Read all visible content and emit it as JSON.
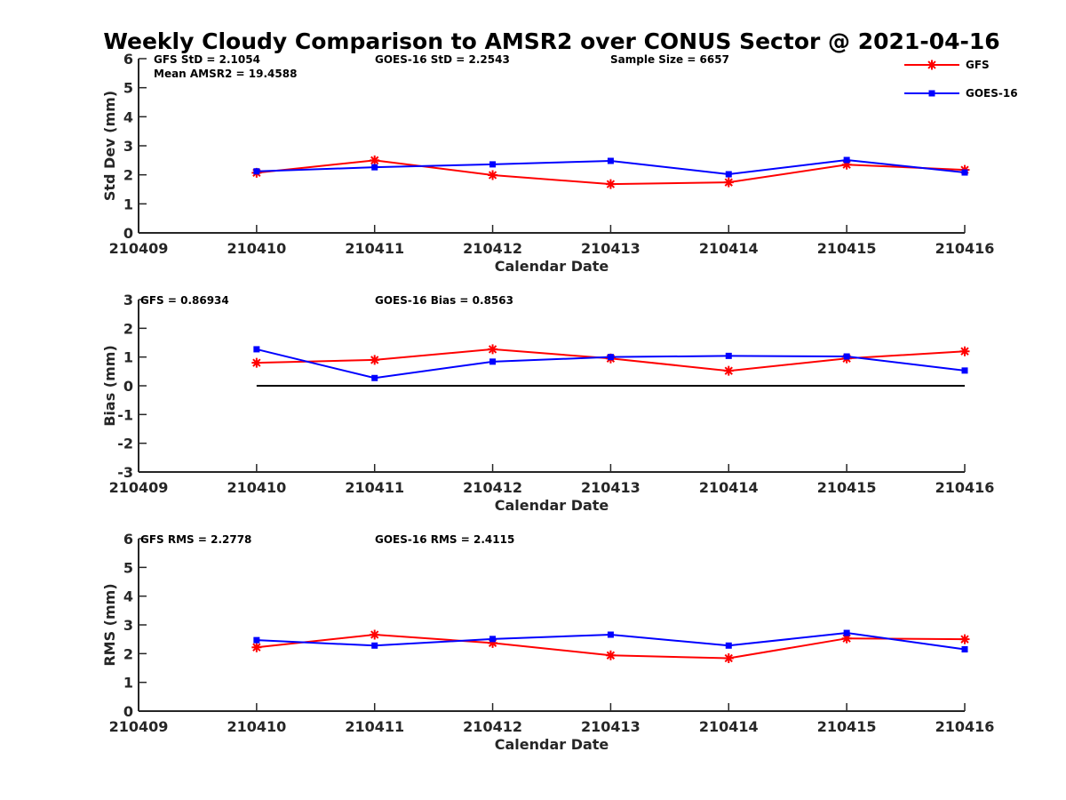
{
  "title": "Weekly Cloudy Comparison to AMSR2 over CONUS Sector @ 2021-04-16",
  "legend": {
    "placement": "top-right",
    "items": [
      {
        "label": "GFS",
        "color": "#ff0000",
        "marker": "asterisk"
      },
      {
        "label": "GOES-16",
        "color": "#0000ff",
        "marker": "square"
      }
    ]
  },
  "chart_data": [
    {
      "type": "line",
      "xlabel": "Calendar Date",
      "ylabel": "Std Dev (mm)",
      "ylim": [
        0,
        6
      ],
      "yticks": [
        "0",
        "1",
        "2",
        "3",
        "4",
        "5",
        "6"
      ],
      "xticks": [
        "210409",
        "210410",
        "210411",
        "210412",
        "210413",
        "210414",
        "210415",
        "210416"
      ],
      "x": [
        "210410",
        "210411",
        "210412",
        "210413",
        "210414",
        "210415",
        "210416"
      ],
      "annotations": [
        "GFS StD = 2.1054",
        "Mean AMSR2 = 19.4588",
        "GOES-16 StD = 2.2543",
        "Sample Size = 6657"
      ],
      "series": [
        {
          "name": "GFS",
          "color": "#ff0000",
          "marker": "asterisk",
          "values": [
            2.07,
            2.5,
            1.99,
            1.68,
            1.74,
            2.35,
            2.17
          ]
        },
        {
          "name": "GOES-16",
          "color": "#0000ff",
          "marker": "square",
          "values": [
            2.12,
            2.26,
            2.36,
            2.48,
            2.02,
            2.51,
            2.08
          ]
        }
      ],
      "zero_line": false
    },
    {
      "type": "line",
      "xlabel": "Calendar Date",
      "ylabel": "Bias (mm)",
      "ylim": [
        -3,
        3
      ],
      "yticks": [
        "-3",
        "-2",
        "-1",
        "0",
        "1",
        "2",
        "3"
      ],
      "xticks": [
        "210409",
        "210410",
        "210411",
        "210412",
        "210413",
        "210414",
        "210415",
        "210416"
      ],
      "x": [
        "210410",
        "210411",
        "210412",
        "210413",
        "210414",
        "210415",
        "210416"
      ],
      "annotations": [
        "GFS = 0.86934",
        "GOES-16 Bias  = 0.8563"
      ],
      "series": [
        {
          "name": "GFS",
          "color": "#ff0000",
          "marker": "asterisk",
          "values": [
            0.8,
            0.9,
            1.27,
            0.95,
            0.52,
            0.95,
            1.2
          ]
        },
        {
          "name": "GOES-16",
          "color": "#0000ff",
          "marker": "square",
          "values": [
            1.27,
            0.27,
            0.84,
            1.0,
            1.04,
            1.02,
            0.53
          ]
        }
      ],
      "zero_line": true
    },
    {
      "type": "line",
      "xlabel": "Calendar Date",
      "ylabel": "RMS (mm)",
      "ylim": [
        0,
        6
      ],
      "yticks": [
        "0",
        "1",
        "2",
        "3",
        "4",
        "5",
        "6"
      ],
      "xticks": [
        "210409",
        "210410",
        "210411",
        "210412",
        "210413",
        "210414",
        "210415",
        "210416"
      ],
      "x": [
        "210410",
        "210411",
        "210412",
        "210413",
        "210414",
        "210415",
        "210416"
      ],
      "annotations": [
        "GFS RMS = 2.2778",
        "GOES-16 RMS = 2.4115"
      ],
      "series": [
        {
          "name": "GFS",
          "color": "#ff0000",
          "marker": "asterisk",
          "values": [
            2.22,
            2.66,
            2.37,
            1.94,
            1.84,
            2.53,
            2.5
          ]
        },
        {
          "name": "GOES-16",
          "color": "#0000ff",
          "marker": "square",
          "values": [
            2.47,
            2.28,
            2.51,
            2.66,
            2.28,
            2.72,
            2.15
          ]
        }
      ],
      "zero_line": false
    }
  ]
}
